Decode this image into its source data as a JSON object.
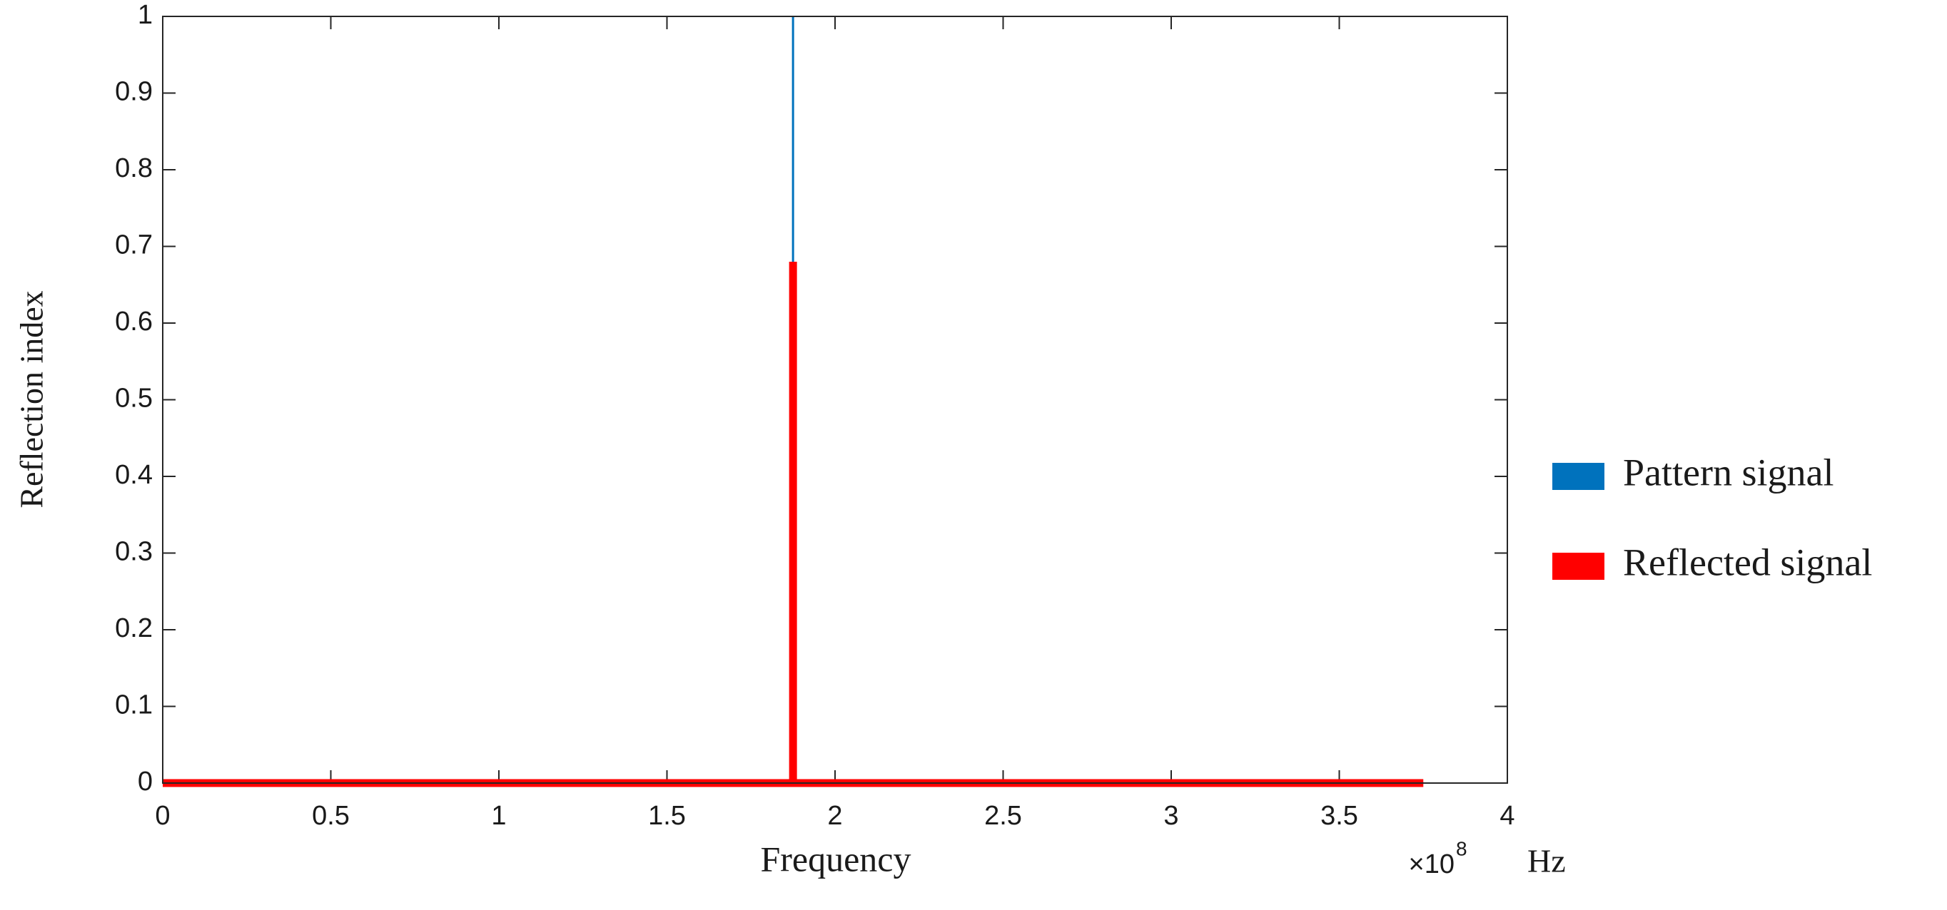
{
  "chart_data": {
    "type": "line",
    "x_label": "Frequency",
    "y_label": "Reflection index",
    "x_multiplier": "×10",
    "x_exponent": "8",
    "x_unit": "Hz",
    "series": [
      {
        "name": "Pattern signal",
        "color": "#0072bd",
        "x": [
          0,
          1.875,
          1.875,
          1.875,
          3.75
        ],
        "values": [
          0,
          0,
          1,
          0,
          0
        ]
      },
      {
        "name": "Reflected signal",
        "color": "#ff0000",
        "x": [
          0,
          1.875,
          1.875,
          1.875,
          3.75
        ],
        "values": [
          0,
          0,
          0.68,
          0,
          0
        ]
      }
    ],
    "xlim": [
      0,
      4
    ],
    "xticks": [
      0,
      0.5,
      1,
      1.5,
      2,
      2.5,
      3,
      3.5,
      4
    ],
    "ylim": [
      0,
      1
    ],
    "yticks": [
      0,
      0.1,
      0.2,
      0.3,
      0.4,
      0.5,
      0.6,
      0.7,
      0.8,
      0.9,
      1
    ],
    "legend": "right"
  }
}
